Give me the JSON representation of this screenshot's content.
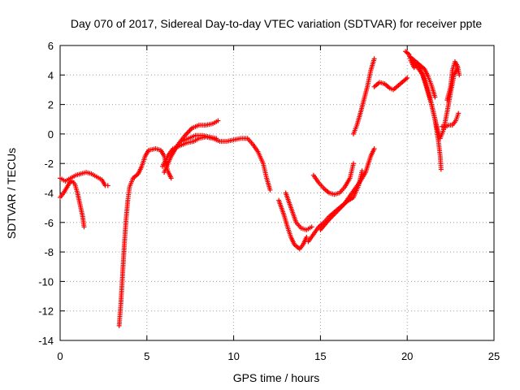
{
  "chart_data": {
    "type": "scatter",
    "title": "Day 070 of 2017, Sidereal Day-to-day VTEC variation (SDTVAR) for receiver ppte",
    "xlabel": "GPS time / hours",
    "ylabel": "SDTVAR / TECUs",
    "xlim": [
      0,
      25
    ],
    "ylim": [
      -14,
      6
    ],
    "xticks": [
      "0",
      "5",
      "10",
      "15",
      "20",
      "25"
    ],
    "yticks": [
      "-14",
      "-12",
      "-10",
      "-8",
      "-6",
      "-4",
      "-2",
      "0",
      "2",
      "4",
      "6"
    ],
    "grid": true,
    "legend": "none",
    "marker": "plus",
    "color": "#ff0000",
    "series": [
      {
        "points": [
          [
            0.0,
            -3.0
          ],
          [
            0.3,
            -3.2
          ],
          [
            0.6,
            -3.0
          ],
          [
            0.9,
            -2.8
          ],
          [
            1.2,
            -2.7
          ],
          [
            1.5,
            -2.6
          ],
          [
            1.8,
            -2.7
          ],
          [
            2.1,
            -2.9
          ],
          [
            2.4,
            -3.1
          ],
          [
            2.6,
            -3.5
          ],
          [
            2.75,
            -3.5
          ]
        ]
      },
      {
        "points": [
          [
            0.0,
            -4.3
          ],
          [
            0.2,
            -4.0
          ],
          [
            0.4,
            -3.6
          ],
          [
            0.55,
            -3.3
          ],
          [
            0.7,
            -3.2
          ],
          [
            0.85,
            -3.4
          ],
          [
            1.0,
            -4.0
          ],
          [
            1.15,
            -4.8
          ],
          [
            1.3,
            -5.6
          ],
          [
            1.38,
            -6.3
          ]
        ]
      },
      {
        "points": [
          [
            3.4,
            -13.0
          ],
          [
            3.5,
            -11.5
          ],
          [
            3.6,
            -9.5
          ],
          [
            3.7,
            -7.5
          ],
          [
            3.8,
            -5.8
          ],
          [
            3.9,
            -4.5
          ],
          [
            4.0,
            -3.6
          ],
          [
            4.2,
            -3.0
          ],
          [
            4.5,
            -2.7
          ],
          [
            4.7,
            -2.2
          ],
          [
            4.9,
            -1.5
          ],
          [
            5.1,
            -1.1
          ],
          [
            5.5,
            -1.0
          ],
          [
            5.8,
            -1.1
          ],
          [
            6.0,
            -1.5
          ],
          [
            6.2,
            -2.5
          ],
          [
            6.4,
            -3.0
          ]
        ]
      },
      {
        "points": [
          [
            5.9,
            -2.2
          ],
          [
            6.2,
            -1.5
          ],
          [
            6.5,
            -1.0
          ],
          [
            6.9,
            -0.8
          ],
          [
            7.3,
            -0.6
          ],
          [
            7.7,
            -0.5
          ],
          [
            8.0,
            -0.3
          ],
          [
            8.4,
            -0.2
          ],
          [
            8.8,
            -0.3
          ],
          [
            9.2,
            -0.5
          ],
          [
            9.6,
            -0.5
          ],
          [
            10.0,
            -0.4
          ],
          [
            10.4,
            -0.3
          ],
          [
            10.8,
            -0.3
          ],
          [
            11.1,
            -0.7
          ],
          [
            11.4,
            -1.2
          ],
          [
            11.7,
            -2.0
          ],
          [
            11.9,
            -3.0
          ],
          [
            12.1,
            -3.8
          ]
        ]
      },
      {
        "points": [
          [
            6.0,
            -2.6
          ],
          [
            6.4,
            -1.5
          ],
          [
            6.8,
            -0.7
          ],
          [
            7.2,
            -0.1
          ],
          [
            7.6,
            0.4
          ],
          [
            8.0,
            0.6
          ],
          [
            8.4,
            0.6
          ],
          [
            8.8,
            0.7
          ],
          [
            9.1,
            0.9
          ]
        ]
      },
      {
        "points": [
          [
            7.0,
            -0.5
          ],
          [
            7.4,
            -0.3
          ],
          [
            7.8,
            -0.1
          ],
          [
            8.2,
            -0.1
          ],
          [
            8.6,
            -0.2
          ],
          [
            9.0,
            -0.3
          ]
        ]
      },
      {
        "points": [
          [
            12.6,
            -4.5
          ],
          [
            12.9,
            -5.5
          ],
          [
            13.1,
            -6.3
          ],
          [
            13.3,
            -7.0
          ],
          [
            13.5,
            -7.5
          ],
          [
            13.8,
            -7.8
          ],
          [
            14.0,
            -7.5
          ],
          [
            14.2,
            -7.0
          ]
        ]
      },
      {
        "points": [
          [
            13.0,
            -4.0
          ],
          [
            13.3,
            -5.0
          ],
          [
            13.6,
            -6.0
          ],
          [
            13.9,
            -6.4
          ],
          [
            14.2,
            -6.5
          ],
          [
            14.5,
            -6.3
          ]
        ]
      },
      {
        "points": [
          [
            14.3,
            -7.3
          ],
          [
            14.6,
            -6.8
          ],
          [
            14.9,
            -6.3
          ],
          [
            15.2,
            -6.0
          ],
          [
            15.5,
            -5.6
          ],
          [
            15.8,
            -5.3
          ],
          [
            16.1,
            -5.0
          ],
          [
            16.4,
            -4.7
          ],
          [
            16.7,
            -4.2
          ],
          [
            17.0,
            -3.7
          ],
          [
            17.3,
            -3.2
          ],
          [
            17.6,
            -2.6
          ],
          [
            17.9,
            -1.5
          ],
          [
            18.1,
            -1.0
          ]
        ]
      },
      {
        "points": [
          [
            14.6,
            -2.8
          ],
          [
            14.9,
            -3.3
          ],
          [
            15.2,
            -3.7
          ],
          [
            15.5,
            -4.0
          ],
          [
            15.8,
            -4.1
          ],
          [
            16.1,
            -4.0
          ],
          [
            16.4,
            -3.6
          ],
          [
            16.7,
            -3.0
          ],
          [
            16.9,
            -2.0
          ]
        ]
      },
      {
        "points": [
          [
            15.0,
            -6.5
          ],
          [
            15.5,
            -5.8
          ],
          [
            16.0,
            -5.2
          ],
          [
            16.5,
            -4.6
          ],
          [
            16.9,
            -4.3
          ],
          [
            17.2,
            -3.5
          ],
          [
            17.4,
            -2.5
          ]
        ]
      },
      {
        "points": [
          [
            16.9,
            0.0
          ],
          [
            17.1,
            0.6
          ],
          [
            17.3,
            1.4
          ],
          [
            17.5,
            2.3
          ],
          [
            17.7,
            3.2
          ],
          [
            17.9,
            4.3
          ],
          [
            18.1,
            5.1
          ]
        ]
      },
      {
        "points": [
          [
            18.1,
            3.2
          ],
          [
            18.4,
            3.5
          ],
          [
            18.7,
            3.4
          ],
          [
            19.0,
            3.1
          ],
          [
            19.2,
            3.0
          ],
          [
            19.5,
            3.3
          ],
          [
            19.8,
            3.6
          ],
          [
            20.0,
            3.8
          ]
        ]
      },
      {
        "points": [
          [
            19.9,
            5.6
          ],
          [
            20.1,
            5.4
          ],
          [
            20.2,
            5.0
          ],
          [
            20.4,
            4.5
          ],
          [
            20.6,
            4.8
          ],
          [
            20.8,
            4.3
          ],
          [
            21.0,
            3.6
          ],
          [
            21.2,
            2.8
          ],
          [
            21.4,
            2.0
          ],
          [
            21.6,
            1.0
          ],
          [
            21.8,
            -0.5
          ],
          [
            21.9,
            -1.5
          ],
          [
            21.95,
            -2.4
          ]
        ]
      },
      {
        "points": [
          [
            20.3,
            5.0
          ],
          [
            20.6,
            4.5
          ],
          [
            20.9,
            4.0
          ],
          [
            21.1,
            3.3
          ],
          [
            21.3,
            2.5
          ],
          [
            21.5,
            1.5
          ],
          [
            21.7,
            0.5
          ],
          [
            21.9,
            -0.3
          ],
          [
            22.1,
            0.3
          ],
          [
            22.3,
            1.5
          ],
          [
            22.5,
            2.8
          ],
          [
            22.7,
            4.0
          ],
          [
            22.9,
            4.5
          ]
        ]
      },
      {
        "points": [
          [
            20.2,
            5.2
          ],
          [
            20.5,
            4.9
          ],
          [
            20.8,
            4.6
          ],
          [
            21.0,
            4.4
          ],
          [
            21.2,
            3.9
          ],
          [
            21.4,
            3.3
          ],
          [
            21.6,
            2.5
          ]
        ]
      },
      {
        "points": [
          [
            22.0,
            0.5
          ],
          [
            22.2,
            0.5
          ],
          [
            22.4,
            0.6
          ],
          [
            22.6,
            0.6
          ],
          [
            22.8,
            0.9
          ],
          [
            22.95,
            1.4
          ]
        ]
      },
      {
        "points": [
          [
            22.3,
            2.3
          ],
          [
            22.5,
            3.2
          ],
          [
            22.6,
            4.3
          ],
          [
            22.75,
            4.9
          ],
          [
            22.9,
            4.6
          ],
          [
            23.0,
            4.0
          ]
        ]
      }
    ]
  }
}
